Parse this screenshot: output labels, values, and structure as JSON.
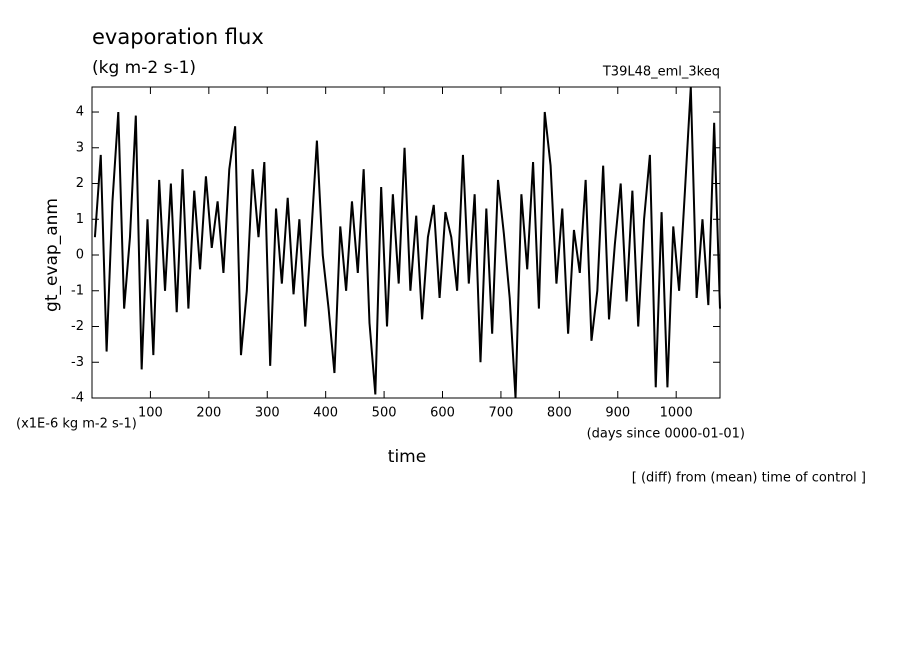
{
  "chart_data": {
    "type": "line",
    "title": "evaporation flux",
    "subtitle": "(kg m-2 s-1)",
    "run_label": "T39L48_eml_3keq",
    "ylabel": "gt_evap_anm",
    "yunit": "(x1E-6 kg m-2 s-1)",
    "xlabel": "time",
    "xunit": "(days since 0000-01-01)",
    "note": "[ (diff) from (mean) time of control ]",
    "xlim": [
      0,
      1075
    ],
    "ylim": [
      -4,
      4.7
    ],
    "xticks": [
      100,
      200,
      300,
      400,
      500,
      600,
      700,
      800,
      900,
      1000
    ],
    "yticks": [
      -4,
      -3,
      -2,
      -1,
      0,
      1,
      2,
      3,
      4
    ],
    "color": "#000000",
    "x": [
      5,
      15,
      25,
      35,
      45,
      55,
      65,
      75,
      85,
      95,
      105,
      115,
      125,
      135,
      145,
      155,
      165,
      175,
      185,
      195,
      205,
      215,
      225,
      235,
      245,
      255,
      265,
      275,
      285,
      295,
      305,
      315,
      325,
      335,
      345,
      355,
      365,
      375,
      385,
      395,
      405,
      415,
      425,
      435,
      445,
      455,
      465,
      475,
      485,
      495,
      505,
      515,
      525,
      535,
      545,
      555,
      565,
      575,
      585,
      595,
      605,
      615,
      625,
      635,
      645,
      655,
      665,
      675,
      685,
      695,
      705,
      715,
      725,
      735,
      745,
      755,
      765,
      775,
      785,
      795,
      805,
      815,
      825,
      835,
      845,
      855,
      865,
      875,
      885,
      895,
      905,
      915,
      925,
      935,
      945,
      955,
      965,
      975,
      985,
      995,
      1005,
      1015,
      1025,
      1035,
      1045,
      1055,
      1065,
      1075
    ],
    "values": [
      0.5,
      2.8,
      -2.7,
      1.5,
      4.0,
      -1.5,
      0.5,
      3.9,
      -3.2,
      1.0,
      -2.8,
      2.1,
      -1.0,
      2.0,
      -1.6,
      2.4,
      -1.5,
      1.8,
      -0.4,
      2.2,
      0.2,
      1.5,
      -0.5,
      2.4,
      3.6,
      -2.8,
      -1.0,
      2.4,
      0.5,
      2.6,
      -3.1,
      1.3,
      -0.8,
      1.6,
      -1.1,
      1.0,
      -2.0,
      0.5,
      3.2,
      0.0,
      -1.5,
      -3.3,
      0.8,
      -1.0,
      1.5,
      -0.5,
      2.4,
      -1.9,
      -3.9,
      1.9,
      -2.0,
      1.7,
      -0.8,
      3.0,
      -1.0,
      1.1,
      -1.8,
      0.5,
      1.4,
      -1.2,
      1.2,
      0.5,
      -1.0,
      2.8,
      -0.8,
      1.7,
      -3.0,
      1.3,
      -2.2,
      2.1,
      0.6,
      -1.2,
      -4.0,
      1.7,
      -0.4,
      2.6,
      -1.5,
      4.0,
      2.5,
      -0.8,
      1.3,
      -2.2,
      0.7,
      -0.5,
      2.1,
      -2.4,
      -1.0,
      2.5,
      -1.8,
      0.3,
      2.0,
      -1.3,
      1.8,
      -2.0,
      1.0,
      2.8,
      -3.7,
      1.2,
      -3.7,
      0.8,
      -1.0,
      1.8,
      4.7,
      -1.2,
      1.0,
      -1.4,
      3.7,
      -1.5
    ]
  }
}
